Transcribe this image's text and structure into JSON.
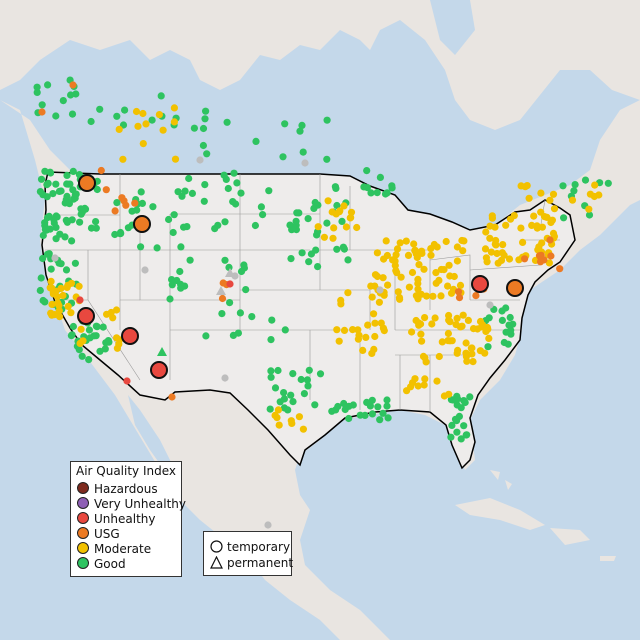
{
  "legend": {
    "title": "Air Quality Index",
    "categories": [
      {
        "label": "Hazardous",
        "color": "#7e2a1e"
      },
      {
        "label": "Very Unhealthy",
        "color": "#8e5fb5"
      },
      {
        "label": "Unhealthy",
        "color": "#e8483f"
      },
      {
        "label": "USG",
        "color": "#ec7a23"
      },
      {
        "label": "Moderate",
        "color": "#f2c100"
      },
      {
        "label": "Good",
        "color": "#2ec360"
      }
    ],
    "monitor_types": [
      {
        "label": "temporary",
        "symbol": "circle-icon"
      },
      {
        "label": "permanent",
        "symbol": "triangle-icon"
      }
    ]
  },
  "map": {
    "water_color": "#c4d8ea",
    "land_color": "#eae6e2",
    "us_land_color": "#efeeec",
    "nodata_color": "#bdbdbd"
  }
}
